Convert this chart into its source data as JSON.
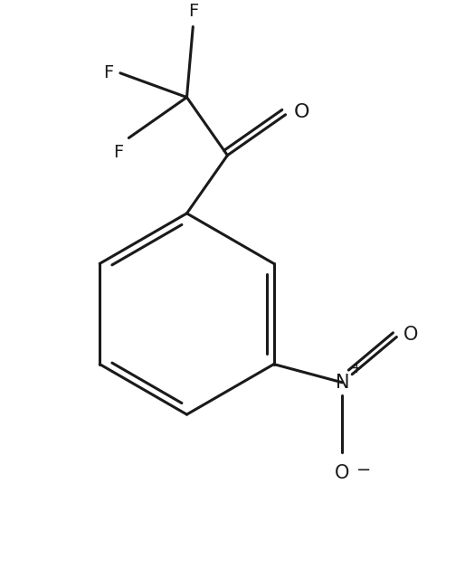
{
  "background_color": "#ffffff",
  "line_color": "#1a1a1a",
  "line_width": 2.2,
  "font_size": 14,
  "figsize": [
    5.14,
    6.4
  ],
  "dpi": 100,
  "xlim": [
    0,
    10
  ],
  "ylim": [
    0,
    12.5
  ],
  "bx": 4.0,
  "by": 5.8,
  "br": 2.2
}
